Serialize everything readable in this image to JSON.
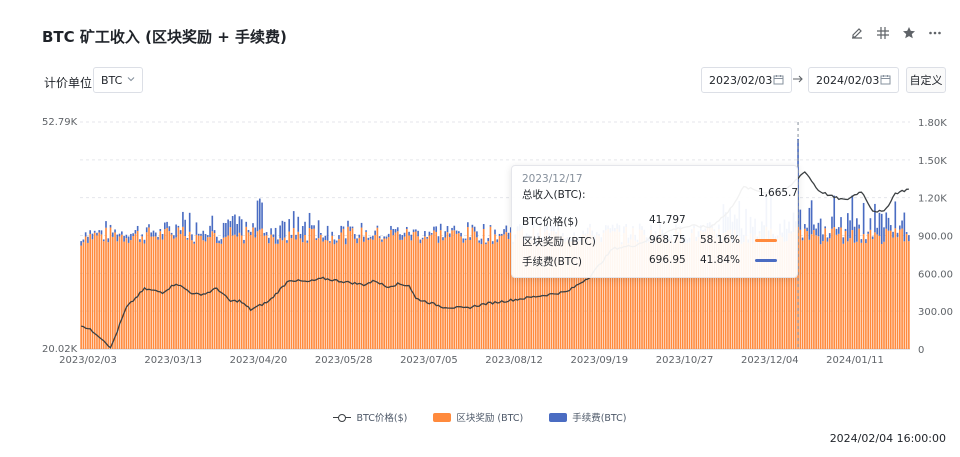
{
  "header": {
    "title": "BTC 矿工收入 (区块奖励 + 手续费)",
    "icons": [
      "edit-icon",
      "grid-icon",
      "star-icon",
      "more-icon"
    ]
  },
  "controls": {
    "unit_label": "计价单位",
    "unit_value": "BTC",
    "date_from": "2023/02/03",
    "date_to": "2024/02/03",
    "custom_label": "自定义"
  },
  "chart_data": {
    "type": "bar",
    "stacked": true,
    "x_tick_labels": [
      "2023/02/03",
      "2023/03/13",
      "2023/04/20",
      "2023/05/28",
      "2023/07/05",
      "2023/08/12",
      "2023/09/19",
      "2023/10/27",
      "2023/12/04",
      "2024/01/11"
    ],
    "left_axis": {
      "min": 20020,
      "max": 52790,
      "labels": [
        "52.79K",
        "20.02K"
      ]
    },
    "right_axis": {
      "min": 0,
      "max": 1800,
      "labels": [
        "1.80K",
        "1.50K",
        "1.20K",
        "900.00",
        "600.00",
        "300.00",
        "0"
      ]
    },
    "series": [
      {
        "name": "BTC价格($)",
        "type": "line",
        "axis": "left",
        "color": "#3c4043",
        "anchors": [
          [
            0,
            23500
          ],
          [
            6,
            22400
          ],
          [
            11,
            21000
          ],
          [
            13,
            20100
          ],
          [
            20,
            26000
          ],
          [
            28,
            28700
          ],
          [
            36,
            28200
          ],
          [
            42,
            29500
          ],
          [
            50,
            27900
          ],
          [
            55,
            28000
          ],
          [
            60,
            28800
          ],
          [
            66,
            26900
          ],
          [
            70,
            27000
          ],
          [
            75,
            25700
          ],
          [
            83,
            26900
          ],
          [
            92,
            30000
          ],
          [
            100,
            29700
          ],
          [
            107,
            30200
          ],
          [
            115,
            29800
          ],
          [
            125,
            29300
          ],
          [
            130,
            29900
          ],
          [
            135,
            29000
          ],
          [
            140,
            29400
          ],
          [
            145,
            29200
          ],
          [
            148,
            27300
          ],
          [
            160,
            26100
          ],
          [
            170,
            25900
          ],
          [
            178,
            26500
          ],
          [
            195,
            27300
          ],
          [
            205,
            27800
          ],
          [
            215,
            28300
          ],
          [
            225,
            30500
          ],
          [
            235,
            34500
          ],
          [
            245,
            35000
          ],
          [
            255,
            36400
          ],
          [
            262,
            37300
          ],
          [
            270,
            37800
          ],
          [
            278,
            37600
          ],
          [
            286,
            39700
          ],
          [
            293,
            43400
          ],
          [
            300,
            42800
          ],
          [
            306,
            42300
          ],
          [
            312,
            43000
          ],
          [
            320,
            45700
          ],
          [
            326,
            42900
          ],
          [
            333,
            41900
          ],
          [
            338,
            41500
          ],
          [
            345,
            42800
          ],
          [
            350,
            40000
          ],
          [
            355,
            39800
          ],
          [
            360,
            42500
          ],
          [
            366,
            43100
          ]
        ]
      },
      {
        "name": "区块奖励 (BTC)",
        "type": "bar",
        "axis": "right",
        "color": "#ff8a3d",
        "typical": 900
      },
      {
        "name": "手续费(BTC)",
        "type": "bar",
        "axis": "right",
        "color": "#4a6cc2",
        "typical": 30
      }
    ],
    "legend_position": "bottom",
    "crosshair_category": "2023/12/17",
    "tooltip": {
      "date": "2023/12/17",
      "total_label": "总收入(BTC):",
      "total_value": "1,665.7",
      "rows": [
        {
          "label": "BTC价格($)",
          "value": "41,797",
          "percent": ""
        },
        {
          "label": "区块奖励 (BTC)",
          "value": "968.75",
          "percent": "58.16%",
          "color": "#ff8a3d"
        },
        {
          "label": "手续费(BTC)",
          "value": "696.95",
          "percent": "41.84%",
          "color": "#4a6cc2"
        }
      ]
    }
  },
  "footer": {
    "timestamp": "2024/02/04 16:00:00"
  }
}
